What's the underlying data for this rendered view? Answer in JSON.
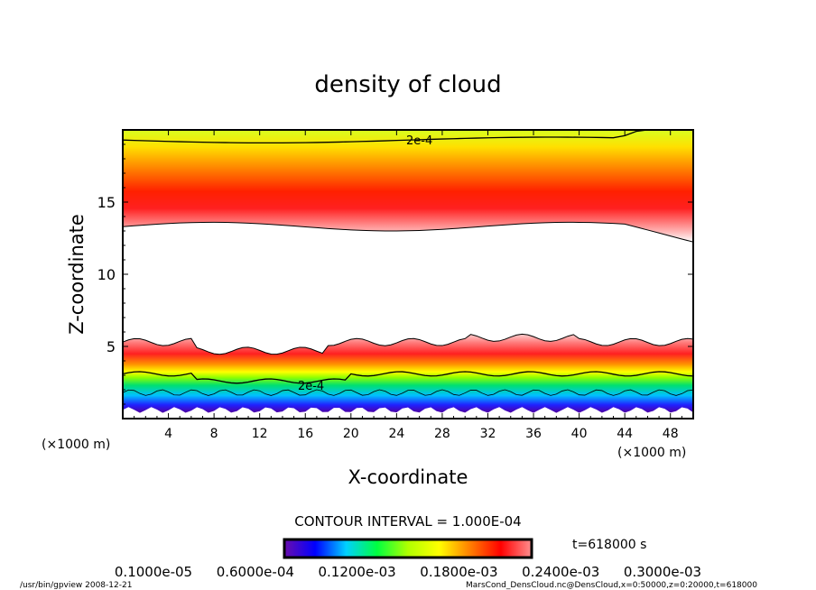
{
  "chart_data": {
    "type": "heatmap",
    "title": "density of cloud",
    "xlabel": "X-coordinate",
    "ylabel": "Z-coordinate",
    "x_unit_label": "(×1000 m)",
    "y_unit_label": "(×1000 m)",
    "xlim": [
      0,
      50
    ],
    "ylim": [
      0,
      20
    ],
    "xticks": [
      4,
      8,
      12,
      16,
      20,
      24,
      28,
      32,
      36,
      40,
      44,
      48
    ],
    "yticks": [
      5,
      10,
      15
    ],
    "contour_labels": [
      {
        "text": "2e-4",
        "x": 26,
        "z": 19.3
      },
      {
        "text": "2e-4",
        "x": 16.5,
        "z": 2.3
      }
    ],
    "upper_layer": {
      "z_bottom": 13.3,
      "z_peak": 15.3,
      "z_top": 20
    },
    "lower_layer": {
      "z_bottom": 0.6,
      "z_peak": 4.2,
      "z_top": 5.3
    },
    "contour_interval": "CONTOUR INTERVAL = 1.000E-04",
    "colorbar": {
      "labels": [
        "0.1000e-05",
        "0.6000e-04",
        "0.1200e-03",
        "0.1800e-03",
        "0.2400e-03",
        "0.3000e-03"
      ],
      "colors": [
        "#6a0dad",
        "#0000ff",
        "#00d0ff",
        "#00ff40",
        "#b0ff00",
        "#ffff00",
        "#ff8000",
        "#ff0000",
        "#ff9090"
      ]
    },
    "time_label": "t=618000 s",
    "footer_left": "/usr/bin/gpview  2008-12-21",
    "footer_right": "MarsCond_DensCloud.nc@DensCloud,x=0:50000,z=0:20000,t=618000"
  }
}
